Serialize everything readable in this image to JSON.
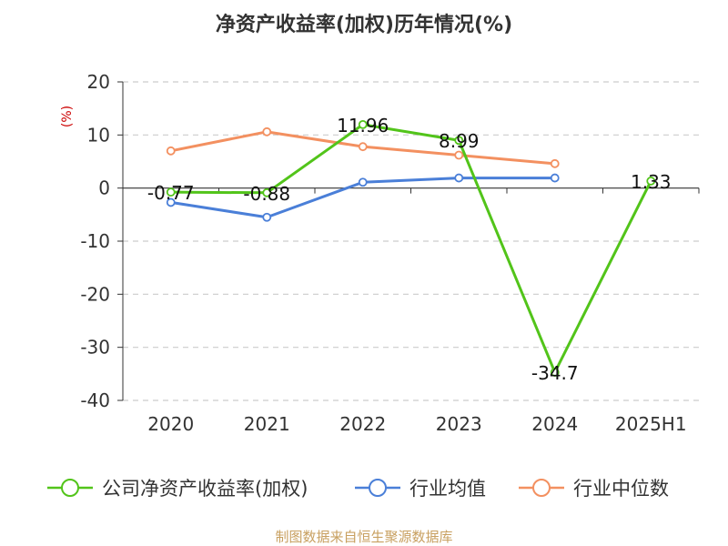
{
  "chart_data": {
    "type": "line",
    "title": "净资产收益率(加权)历年情况(%)",
    "ylabel": "(%)",
    "xlabel": "",
    "categories": [
      "2020",
      "2021",
      "2022",
      "2023",
      "2024",
      "2025H1"
    ],
    "ylim": [
      -40,
      20
    ],
    "yticks": [
      20,
      10,
      0,
      -10,
      -20,
      -30,
      -40
    ],
    "grid": true,
    "legend_position": "bottom",
    "series": [
      {
        "name": "公司净资产收益率(加权)",
        "color": "#52c41a",
        "values": [
          -0.77,
          -0.88,
          11.96,
          8.99,
          -34.7,
          1.33
        ],
        "labels": [
          "-0.77",
          "-0.88",
          "11.96",
          "8.99",
          "-34.7",
          "1.33"
        ]
      },
      {
        "name": "行业均值",
        "color": "#4a7fd8",
        "values": [
          -2.7,
          -5.5,
          1.1,
          1.9,
          1.9,
          null
        ]
      },
      {
        "name": "行业中位数",
        "color": "#f39060",
        "values": [
          7.0,
          10.6,
          7.8,
          6.2,
          4.6,
          null
        ]
      }
    ]
  },
  "footer": {
    "source": "制图数据来自恒生聚源数据库"
  }
}
